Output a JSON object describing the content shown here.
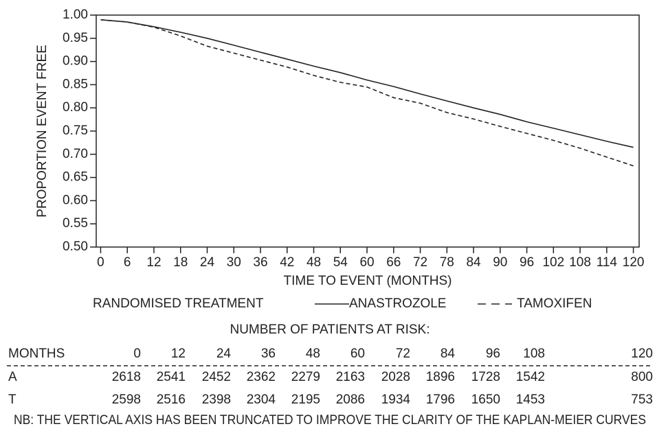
{
  "chart_data": {
    "type": "line",
    "y_label": "PROPORTION EVENT FREE",
    "x_label": "TIME TO EVENT (MONTHS)",
    "legend_title": "RANDOMISED TREATMENT",
    "x": [
      0,
      6,
      12,
      18,
      24,
      30,
      36,
      42,
      48,
      54,
      60,
      66,
      72,
      78,
      84,
      90,
      96,
      102,
      108,
      114,
      120
    ],
    "series": [
      {
        "name": "ANASTROZOLE",
        "color": "#222222",
        "line_style": "solid",
        "values": [
          0.99,
          0.985,
          0.975,
          0.963,
          0.95,
          0.935,
          0.92,
          0.905,
          0.89,
          0.876,
          0.86,
          0.846,
          0.83,
          0.815,
          0.8,
          0.786,
          0.77,
          0.756,
          0.742,
          0.728,
          0.715
        ]
      },
      {
        "name": "TAMOXIFEN",
        "color": "#222222",
        "line_style": "dashed",
        "values": [
          0.99,
          0.985,
          0.974,
          0.955,
          0.933,
          0.918,
          0.903,
          0.888,
          0.87,
          0.855,
          0.845,
          0.822,
          0.81,
          0.79,
          0.776,
          0.76,
          0.745,
          0.73,
          0.713,
          0.694,
          0.675
        ]
      }
    ],
    "xlim": [
      -1,
      121.3
    ],
    "ylim": [
      0.5,
      1.0
    ],
    "xticks": [
      0,
      6,
      12,
      18,
      24,
      30,
      36,
      42,
      48,
      54,
      60,
      66,
      72,
      78,
      84,
      90,
      96,
      102,
      108,
      114,
      120
    ],
    "yticks": [
      {
        "value": 0.5,
        "label": "0.50"
      },
      0.55,
      {
        "value": 0.6,
        "label": "0.60"
      },
      0.65,
      {
        "value": 0.7,
        "label": "0.70"
      },
      0.75,
      {
        "value": 0.8,
        "label": "0.80"
      },
      0.85,
      {
        "value": 0.9,
        "label": "0.90"
      },
      0.95,
      {
        "value": 1.0,
        "label": "1.00"
      }
    ]
  },
  "risk_table": {
    "title": "NUMBER OF PATIENTS AT RISK:",
    "header": [
      "MONTHS",
      "0",
      "12",
      "24",
      "36",
      "48",
      "60",
      "72",
      "84",
      "96",
      "108",
      "120"
    ],
    "rows": [
      [
        "A",
        "2618",
        "2541",
        "2452",
        "2362",
        "2279",
        "2163",
        "2028",
        "1896",
        "1728",
        "1542",
        "800"
      ],
      [
        "T",
        "2598",
        "2516",
        "2398",
        "2304",
        "2195",
        "2086",
        "1934",
        "1796",
        "1650",
        "1453",
        "753"
      ]
    ]
  },
  "note": "NB: THE VERTICAL AXIS HAS BEEN TRUNCATED TO IMPROVE THE CLARITY OF THE KAPLAN-MEIER CURVES"
}
